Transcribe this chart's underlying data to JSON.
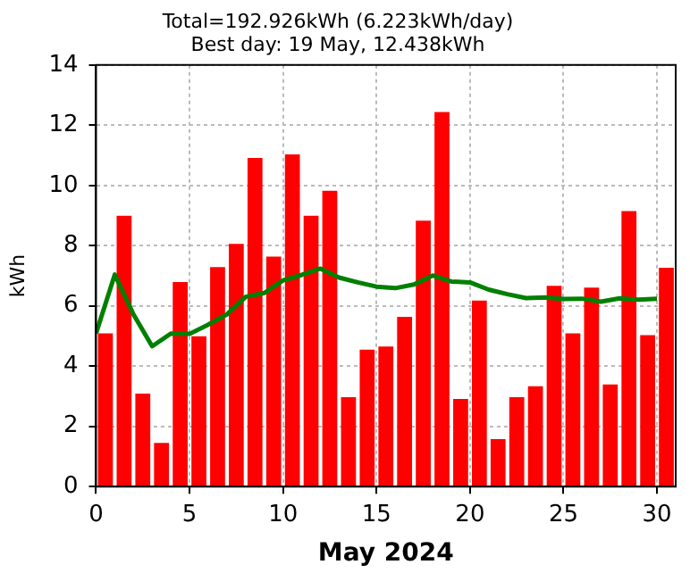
{
  "chart_data": {
    "type": "bar",
    "title": "Total=192.926kWh (6.223kWh/day)",
    "subtitle": "Best day: 19 May, 12.438kWh",
    "xlabel": "May 2024",
    "ylabel": "kWh",
    "xlim": [
      0,
      31
    ],
    "xticks": [
      0,
      5,
      10,
      15,
      20,
      25,
      30
    ],
    "ylim": [
      0,
      14
    ],
    "yticks": [
      0,
      2,
      4,
      6,
      8,
      10,
      12,
      14
    ],
    "grid": true,
    "x": [
      0.5,
      1.5,
      2.5,
      3.5,
      4.5,
      5.5,
      6.5,
      7.5,
      8.5,
      9.5,
      10.5,
      11.5,
      12.5,
      13.5,
      14.5,
      15.5,
      16.5,
      17.5,
      18.5,
      19.5,
      20.5,
      21.5,
      22.5,
      23.5,
      24.5,
      25.5,
      26.5,
      27.5,
      28.5,
      29.5,
      30.5
    ],
    "series": [
      {
        "color": "#ff0000",
        "values": [
          5.09,
          8.99,
          3.09,
          1.45,
          6.79,
          4.99,
          7.29,
          8.06,
          10.91,
          7.64,
          11.03,
          8.99,
          9.82,
          2.97,
          4.55,
          4.65,
          5.64,
          8.83,
          12.44,
          2.91,
          6.18,
          1.58,
          2.97,
          3.33,
          6.67,
          5.09,
          6.61,
          3.39,
          9.15,
          5.03,
          7.27
        ]
      },
      {
        "type": "line",
        "color": "#008000",
        "x": [
          0,
          1,
          2,
          3,
          4,
          5,
          6,
          7,
          8,
          9,
          10,
          11,
          12,
          13,
          14,
          15,
          16,
          17,
          18,
          19,
          20,
          21,
          22,
          23,
          24,
          25,
          26,
          27,
          28,
          29,
          30
        ],
        "values": [
          5.09,
          7.04,
          5.72,
          4.66,
          5.08,
          5.07,
          5.38,
          5.72,
          6.3,
          6.43,
          6.85,
          7.03,
          7.24,
          6.94,
          6.78,
          6.64,
          6.59,
          6.71,
          7.01,
          6.81,
          6.78,
          6.54,
          6.39,
          6.26,
          6.28,
          6.23,
          6.24,
          6.14,
          6.25,
          6.21,
          6.24
        ]
      }
    ]
  }
}
